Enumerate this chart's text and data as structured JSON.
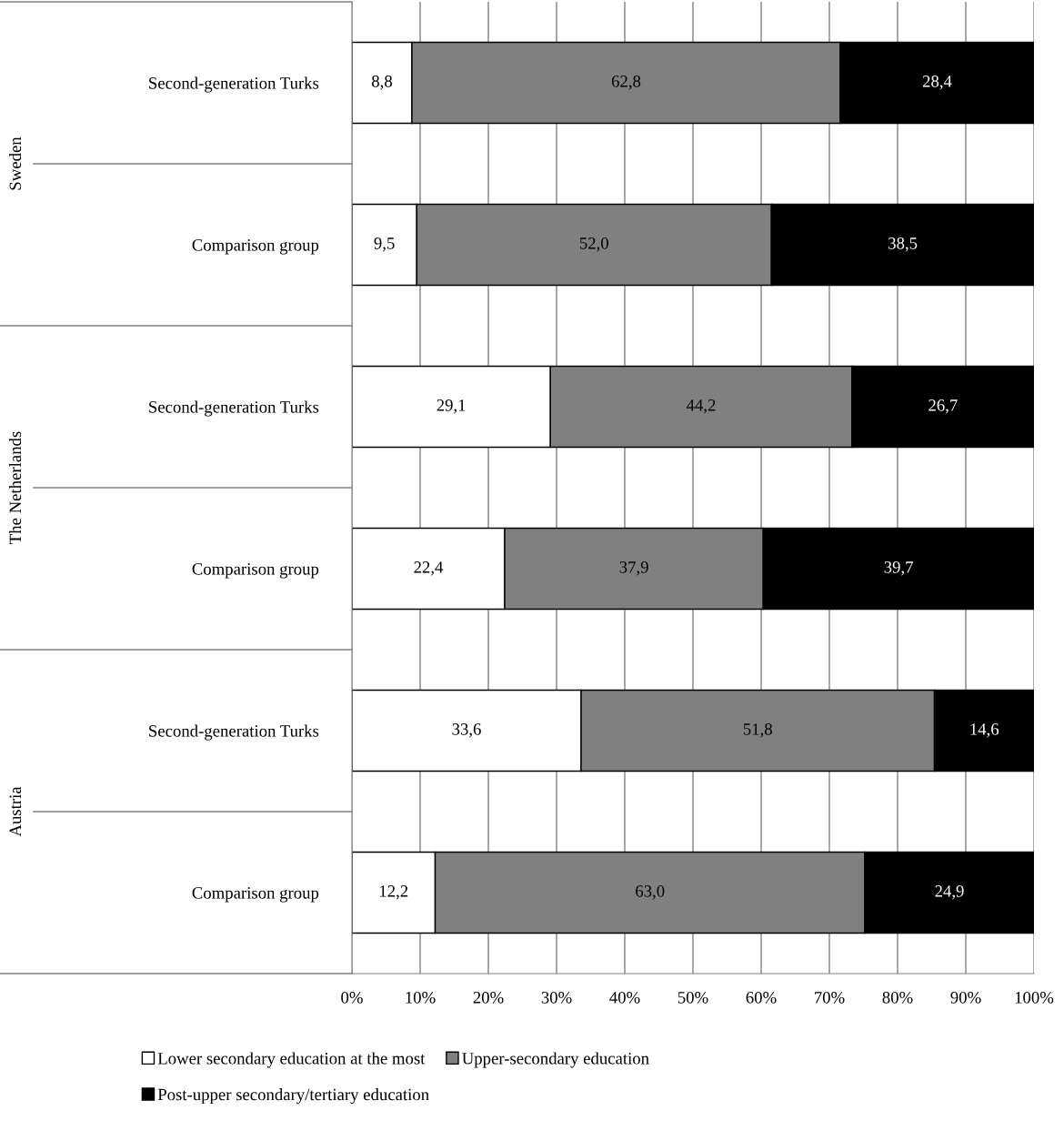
{
  "chart_data": {
    "type": "bar",
    "orientation": "horizontal",
    "stacked": true,
    "categories": [
      "Second-generation Turks",
      "Comparison group",
      "Second-generation Turks",
      "Comparison group",
      "Second-generation Turks",
      "Comparison group"
    ],
    "series": [
      {
        "name": "Lower secondary education at the most",
        "color": "#ffffff",
        "values": [
          8.8,
          9.5,
          29.1,
          22.4,
          33.6,
          12.2
        ],
        "value_labels": [
          "8,8",
          "9,5",
          "29,1",
          "22,4",
          "33,6",
          "12,2"
        ]
      },
      {
        "name": "Upper-secondary education",
        "color": "#808080",
        "values": [
          62.8,
          52.0,
          44.2,
          37.9,
          51.8,
          63.0
        ],
        "value_labels": [
          "62,8",
          "52,0",
          "44,2",
          "37,9",
          "51,8",
          "63,0"
        ]
      },
      {
        "name": "Post-upper secondary/tertiary education",
        "color": "#000000",
        "values": [
          28.4,
          38.5,
          26.7,
          39.7,
          14.6,
          24.9
        ],
        "value_labels": [
          "28,4",
          "38,5",
          "26,7",
          "39,7",
          "14,6",
          "24,9"
        ]
      }
    ],
    "annotations": [
      "Sweden",
      "The Netherlands",
      "Austria"
    ],
    "xlim": [
      0,
      100
    ],
    "xticks": [
      {
        "value": 0,
        "label": "0%"
      },
      {
        "value": 10,
        "label": "10%"
      },
      {
        "value": 20,
        "label": "20%"
      },
      {
        "value": 30,
        "label": "30%"
      },
      {
        "value": 40,
        "label": "40%"
      },
      {
        "value": 50,
        "label": "50%"
      },
      {
        "value": 60,
        "label": "60%"
      },
      {
        "value": 70,
        "label": "70%"
      },
      {
        "value": 80,
        "label": "80%"
      },
      {
        "value": 90,
        "label": "90%"
      },
      {
        "value": 100,
        "label": "100%"
      }
    ],
    "grid": "x",
    "legend": "bottom"
  }
}
